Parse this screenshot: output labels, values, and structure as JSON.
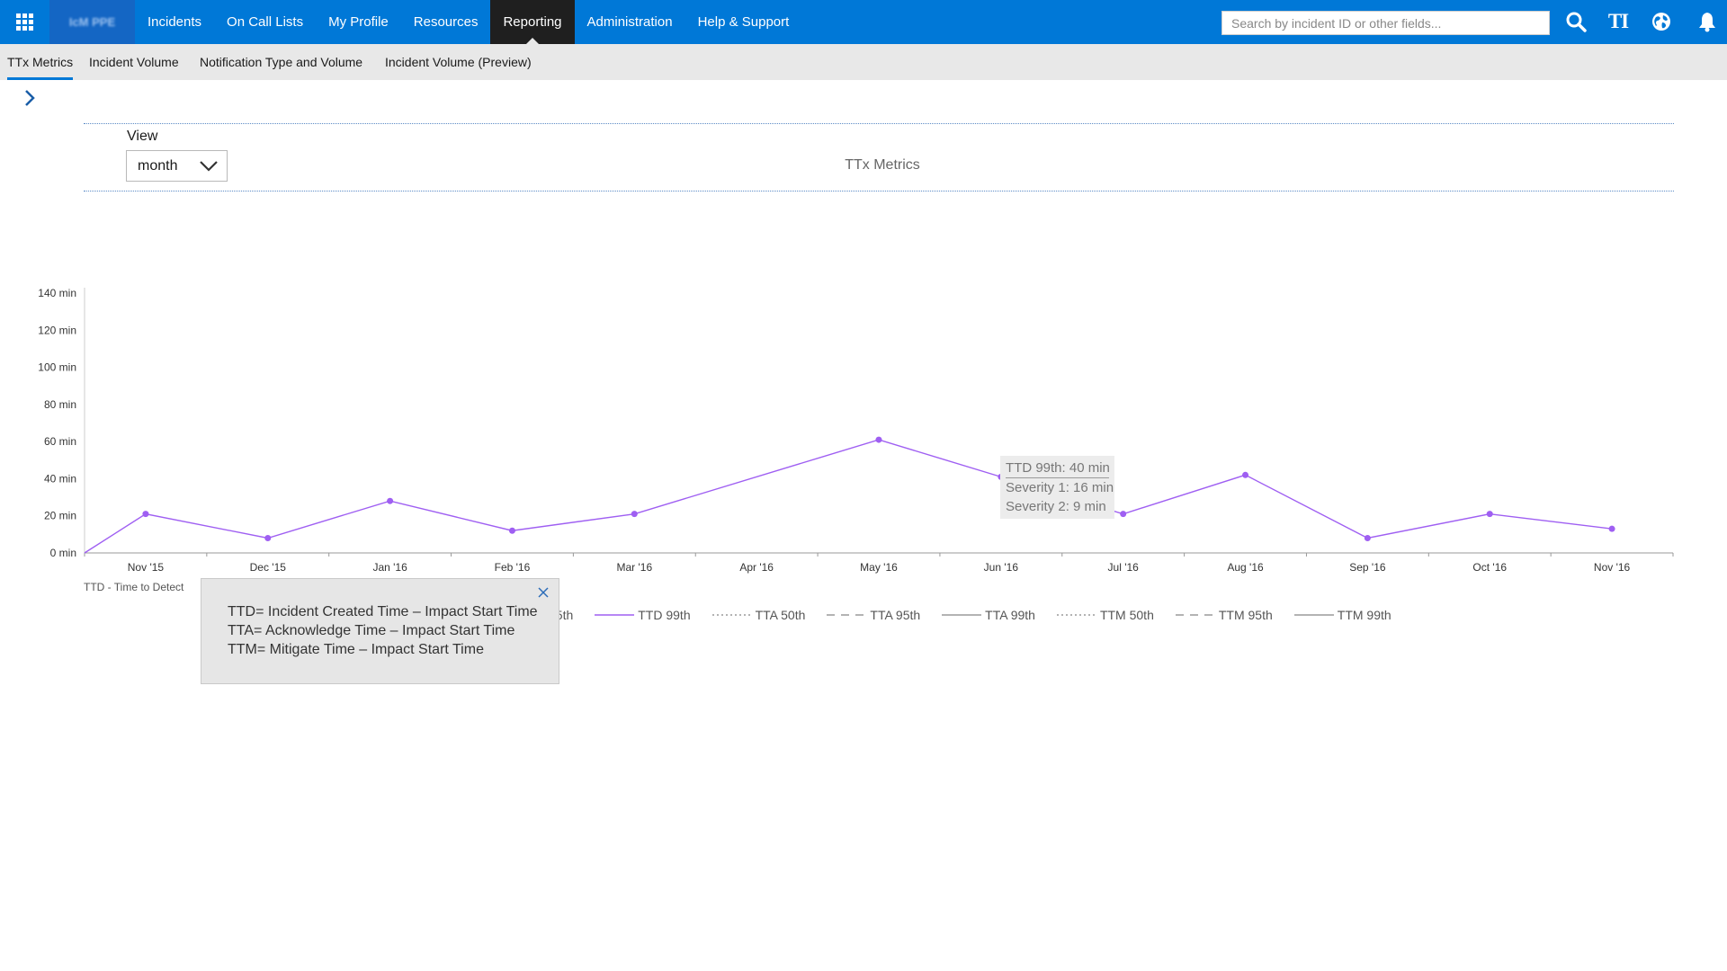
{
  "topbar": {
    "brand": "IcM PPE",
    "nav": [
      "Incidents",
      "On Call Lists",
      "My Profile",
      "Resources",
      "Reporting",
      "Administration",
      "Help & Support"
    ],
    "active_nav": "Reporting",
    "search_placeholder": "Search by incident ID or other fields...",
    "ti_label": "TI",
    "icons": [
      "app-launcher-icon",
      "search-icon",
      "ti-icon",
      "globe-icon",
      "bell-icon"
    ]
  },
  "subtabs": {
    "items": [
      "TTx Metrics",
      "Incident Volume",
      "Notification Type and Volume",
      "Incident Volume (Preview)"
    ],
    "active": "TTx Metrics"
  },
  "filters": {
    "view_label": "View",
    "view_value": "month"
  },
  "chart_data": {
    "type": "line",
    "title": "TTx Metrics",
    "categories": [
      "Nov '15",
      "Dec '15",
      "Jan '16",
      "Feb '16",
      "Mar '16",
      "Apr '16",
      "May '16",
      "Jun '16",
      "Jul '16",
      "Aug '16",
      "Sep '16",
      "Oct '16",
      "Nov '16"
    ],
    "y_ticks": [
      "0 min",
      "20 min",
      "40 min",
      "60 min",
      "80 min",
      "100 min",
      "120 min",
      "140 min"
    ],
    "ylim": [
      0,
      140
    ],
    "grid": false,
    "series": [
      {
        "name": "TTD 99th",
        "color": "#9f5ff2",
        "values": [
          21,
          8,
          28,
          12,
          21,
          null,
          61,
          41,
          21,
          42,
          8,
          21,
          13
        ]
      }
    ],
    "legend_prefix": "TTD - Time to Detect",
    "legend": [
      {
        "label": "95th",
        "style": "none"
      },
      {
        "label": "TTD 99th",
        "style": "solid-purple"
      },
      {
        "label": "TTA 50th",
        "style": "dotted"
      },
      {
        "label": "TTA 95th",
        "style": "dashed"
      },
      {
        "label": "TTA 99th",
        "style": "solid"
      },
      {
        "label": "TTM 50th",
        "style": "dotted"
      },
      {
        "label": "TTM 95th",
        "style": "dashed"
      },
      {
        "label": "TTM 99th",
        "style": "solid"
      }
    ],
    "tooltip": {
      "lines": [
        "TTD 99th: 40 min",
        "Severity 1: 16 min",
        "Severity 2: 9 min"
      ]
    }
  },
  "info_popover": {
    "lines": [
      "TTD= Incident Created Time – Impact Start Time",
      "TTA= Acknowledge Time – Impact Start Time",
      "TTM= Mitigate Time – Impact Start Time"
    ]
  }
}
